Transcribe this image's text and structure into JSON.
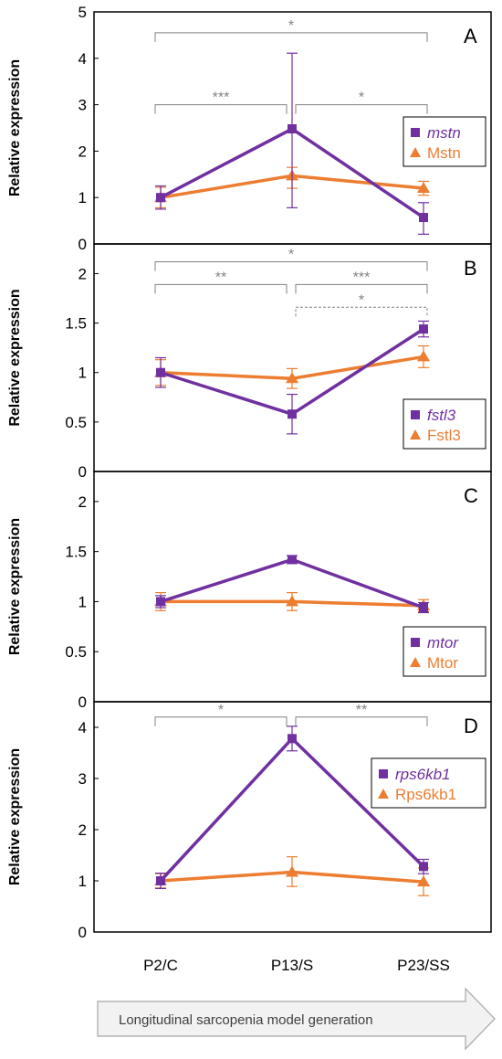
{
  "colors": {
    "gene": "#7030a0",
    "protein": "#ed7d31",
    "axis": "#000000",
    "bracket": "#808080",
    "arrow_fill": "#f2f2f2",
    "arrow_stroke": "#a6a6a6"
  },
  "x_categories": [
    "P2/C",
    "P13/S",
    "P23/SS"
  ],
  "arrow_label": "Longitudinal sarcopenia model generation",
  "chart_data": [
    {
      "type": "line",
      "panel_label": "A",
      "ylabel": "Relative expression",
      "ylim": [
        0,
        5
      ],
      "yticks": [
        0,
        1,
        2,
        3,
        4,
        5
      ],
      "ytick_labels": [
        "0",
        "1",
        "2",
        "3",
        "4",
        "5"
      ],
      "categories": [
        "P2/C",
        "P13/S",
        "P23/SS"
      ],
      "series": [
        {
          "name": "mstn",
          "italic": true,
          "marker": "square",
          "color": "#7030a0",
          "values": [
            1.0,
            2.48,
            0.57
          ],
          "err_low": [
            0.25,
            1.7,
            0.36
          ],
          "err_high": [
            0.25,
            1.63,
            0.32
          ]
        },
        {
          "name": "Mstn",
          "italic": false,
          "marker": "triangle",
          "color": "#ed7d31",
          "values": [
            1.0,
            1.47,
            1.2
          ],
          "err_low": [
            0.22,
            0.27,
            0.15
          ],
          "err_high": [
            0.22,
            0.18,
            0.15
          ]
        }
      ],
      "legend_position": "right",
      "brackets": [
        {
          "from": 0,
          "to": 2,
          "label": "*",
          "level": 4.55,
          "dashed": false
        },
        {
          "from": 0,
          "to": 1,
          "label": "***",
          "level": 3.0,
          "dashed": false
        },
        {
          "from": 1,
          "to": 2,
          "label": "*",
          "level": 3.0,
          "dashed": false
        }
      ]
    },
    {
      "type": "line",
      "panel_label": "B",
      "ylabel": "Relative expression",
      "ylim": [
        0,
        2.3
      ],
      "yticks": [
        0,
        0.5,
        1,
        1.5,
        2
      ],
      "ytick_labels": [
        "0",
        "0.5",
        "1",
        "1.5",
        "2"
      ],
      "categories": [
        "P2/C",
        "P13/S",
        "P23/SS"
      ],
      "series": [
        {
          "name": "fstl3",
          "italic": true,
          "marker": "square",
          "color": "#7030a0",
          "values": [
            1.0,
            0.58,
            1.44
          ],
          "err_low": [
            0.15,
            0.2,
            0.08
          ],
          "err_high": [
            0.15,
            0.2,
            0.08
          ]
        },
        {
          "name": "Fstl3",
          "italic": false,
          "marker": "triangle",
          "color": "#ed7d31",
          "values": [
            1.0,
            0.94,
            1.16
          ],
          "err_low": [
            0.13,
            0.1,
            0.11
          ],
          "err_high": [
            0.13,
            0.1,
            0.11
          ]
        }
      ],
      "legend_position": "right",
      "brackets": [
        {
          "from": 0,
          "to": 2,
          "label": "*",
          "level": 2.12,
          "dashed": false
        },
        {
          "from": 0,
          "to": 1,
          "label": "**",
          "level": 1.89,
          "dashed": false
        },
        {
          "from": 1,
          "to": 2,
          "label": "***",
          "level": 1.89,
          "dashed": false
        },
        {
          "from": 1,
          "to": 2,
          "label": "*",
          "level": 1.66,
          "dashed": true
        }
      ]
    },
    {
      "type": "line",
      "panel_label": "C",
      "ylabel": "Relative expression",
      "ylim": [
        0,
        2.3
      ],
      "yticks": [
        0,
        0.5,
        1,
        1.5,
        2
      ],
      "ytick_labels": [
        "0",
        "0.5",
        "1",
        "1.5",
        "2"
      ],
      "categories": [
        "P2/C",
        "P13/S",
        "P23/SS"
      ],
      "series": [
        {
          "name": "mtor",
          "italic": true,
          "marker": "square",
          "color": "#7030a0",
          "values": [
            1.0,
            1.42,
            0.94
          ],
          "err_low": [
            0.06,
            0.04,
            0.05
          ],
          "err_high": [
            0.06,
            0.04,
            0.05
          ]
        },
        {
          "name": "Mtor",
          "italic": false,
          "marker": "triangle",
          "color": "#ed7d31",
          "values": [
            1.0,
            1.0,
            0.96
          ],
          "err_low": [
            0.09,
            0.09,
            0.06
          ],
          "err_high": [
            0.09,
            0.09,
            0.06
          ]
        }
      ],
      "legend_position": "right",
      "brackets": []
    },
    {
      "type": "line",
      "panel_label": "D",
      "ylabel": "Relative expression",
      "ylim": [
        0,
        4.5
      ],
      "yticks": [
        0,
        1,
        2,
        3,
        4
      ],
      "ytick_labels": [
        "0",
        "1",
        "2",
        "3",
        "4"
      ],
      "categories": [
        "P2/C",
        "P13/S",
        "P23/SS"
      ],
      "series": [
        {
          "name": "rps6kb1",
          "italic": true,
          "marker": "square",
          "color": "#7030a0",
          "values": [
            1.0,
            3.78,
            1.28
          ],
          "err_low": [
            0.15,
            0.24,
            0.14
          ],
          "err_high": [
            0.15,
            0.24,
            0.14
          ]
        },
        {
          "name": "Rps6kb1",
          "italic": false,
          "marker": "triangle",
          "color": "#ed7d31",
          "values": [
            1.0,
            1.17,
            0.98
          ],
          "err_low": [
            0.14,
            0.28,
            0.27
          ],
          "err_high": [
            0.14,
            0.3,
            0.27
          ]
        }
      ],
      "legend_position": "right",
      "brackets": [
        {
          "from": 0,
          "to": 1,
          "label": "*",
          "level": 4.2,
          "dashed": false
        },
        {
          "from": 1,
          "to": 2,
          "label": "**",
          "level": 4.2,
          "dashed": false
        }
      ]
    }
  ]
}
